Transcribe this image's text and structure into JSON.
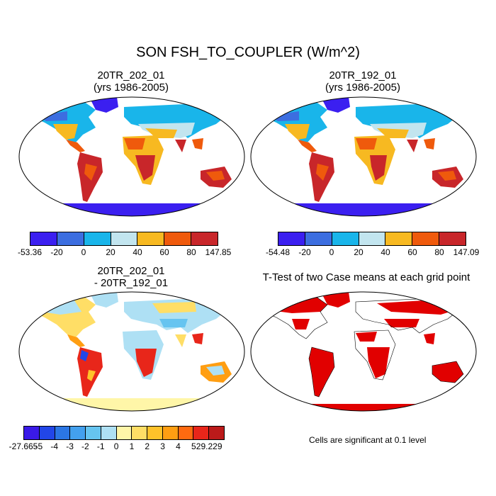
{
  "figure": {
    "title": "SON FSH_TO_COUPLER (W/m^2)"
  },
  "panels": {
    "p1": {
      "title1": "20TR_202_01",
      "title2": "(yrs 1986-2005)"
    },
    "p2": {
      "title1": "20TR_192_01",
      "title2": "(yrs 1986-2005)"
    },
    "p3": {
      "title1": "20TR_202_01",
      "title2": "- 20TR_192_01"
    },
    "p4": {
      "title1": "T-Test of two Case means at each grid point",
      "note": "Cells are significant at 0.1 level"
    }
  },
  "colorbars": {
    "cb1": {
      "colors": [
        "#3b1ff0",
        "#3c6ee0",
        "#19b5ea",
        "#c2e5ef",
        "#f7b921",
        "#ef5a0c",
        "#c8262a"
      ],
      "labels": [
        "-53.36",
        "-20",
        "0",
        "20",
        "40",
        "60",
        "80",
        "147.85"
      ]
    },
    "cb2": {
      "colors": [
        "#3b1ff0",
        "#3c6ee0",
        "#19b5ea",
        "#c2e5ef",
        "#f7b921",
        "#ef5a0c",
        "#c8262a"
      ],
      "labels": [
        "-54.48",
        "-20",
        "0",
        "20",
        "40",
        "60",
        "80",
        "147.09"
      ]
    },
    "cb3": {
      "colors": [
        "#3a1ae8",
        "#2246e8",
        "#2b76e4",
        "#43a0ee",
        "#66c4f0",
        "#aee0f4",
        "#fff6a8",
        "#ffde66",
        "#ffc22a",
        "#ff9e12",
        "#ff6a10",
        "#e8261a",
        "#bb1a1a"
      ],
      "labels": [
        "-27.665",
        "-5",
        "-4",
        "-3",
        "-2",
        "-1",
        "0",
        "1",
        "2",
        "3",
        "4",
        "5",
        "29.229"
      ]
    }
  },
  "chart_data": {
    "type": "heatmap",
    "title": "SON FSH_TO_COUPLER (W/m^2)",
    "panels": [
      {
        "title": "20TR_202_01 (yrs 1986-2005)",
        "levels": [
          -53.36,
          -20,
          0,
          20,
          40,
          60,
          80,
          147.85
        ]
      },
      {
        "title": "20TR_192_01 (yrs 1986-2005)",
        "levels": [
          -54.48,
          -20,
          0,
          20,
          40,
          60,
          80,
          147.09
        ]
      },
      {
        "title": "20TR_202_01 - 20TR_192_01",
        "levels": [
          -27.665,
          -5,
          -4,
          -3,
          -2,
          -1,
          0,
          1,
          2,
          3,
          4,
          5,
          29.229
        ]
      },
      {
        "title": "T-Test of two Case means at each grid point",
        "significance": 0.1
      }
    ]
  }
}
